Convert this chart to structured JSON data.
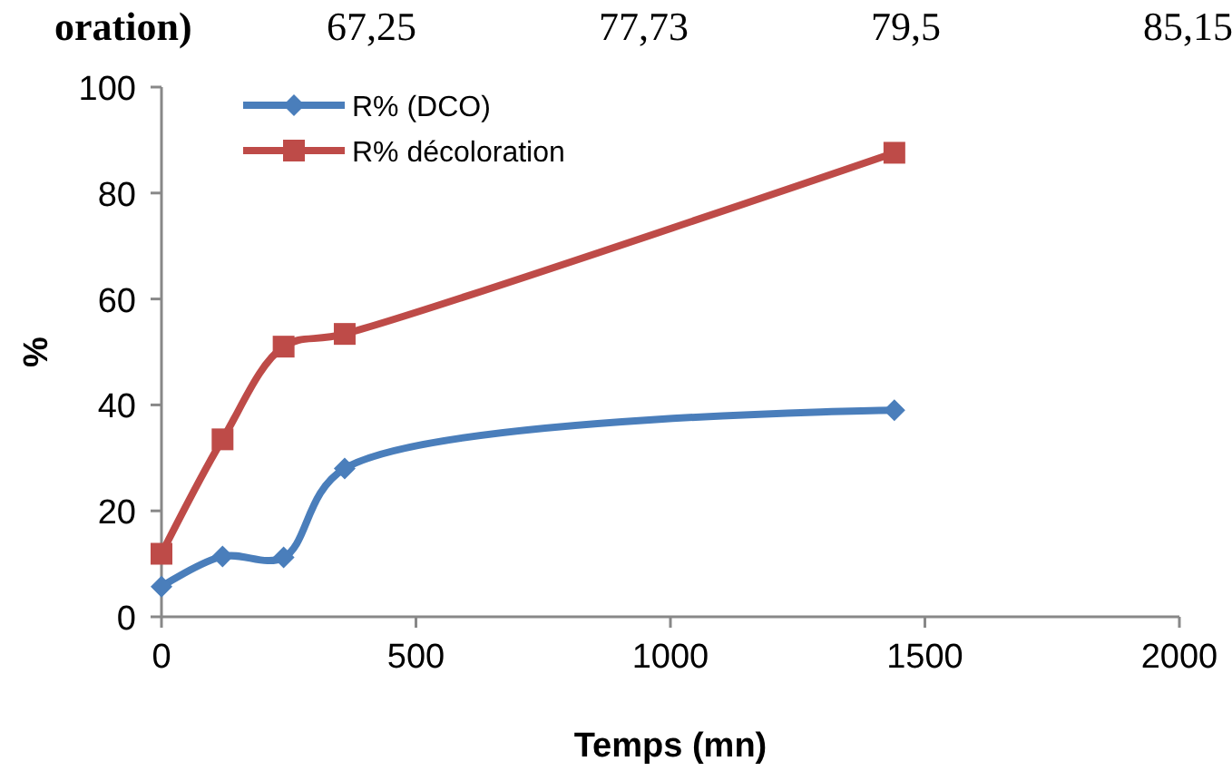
{
  "chart_data": {
    "type": "line",
    "xlabel": "Temps (mn)",
    "ylabel": "%",
    "annotations": [
      "oration)",
      "67,25",
      "77,73",
      "79,5",
      "85,15"
    ],
    "xlim": [
      0,
      2000
    ],
    "xticks": [
      0,
      500,
      1000,
      1500,
      2000
    ],
    "ylim": [
      0,
      100
    ],
    "yticks": [
      0,
      20,
      40,
      60,
      80,
      100
    ],
    "grid": false,
    "legend": "top left",
    "line_style": "solid",
    "series": [
      {
        "name": "R% (DCO)",
        "color": "#4a7ebb",
        "marker": "diamond",
        "x": [
          0,
          120,
          240,
          360,
          1440
        ],
        "values": [
          5.7,
          11.4,
          11.2,
          28,
          39
        ]
      },
      {
        "name": "R% décoloration",
        "color": "#be4b48",
        "marker": "square",
        "x": [
          0,
          120,
          240,
          360,
          1440
        ],
        "values": [
          11.9,
          33.5,
          51,
          53.4,
          87.6
        ]
      }
    ]
  }
}
